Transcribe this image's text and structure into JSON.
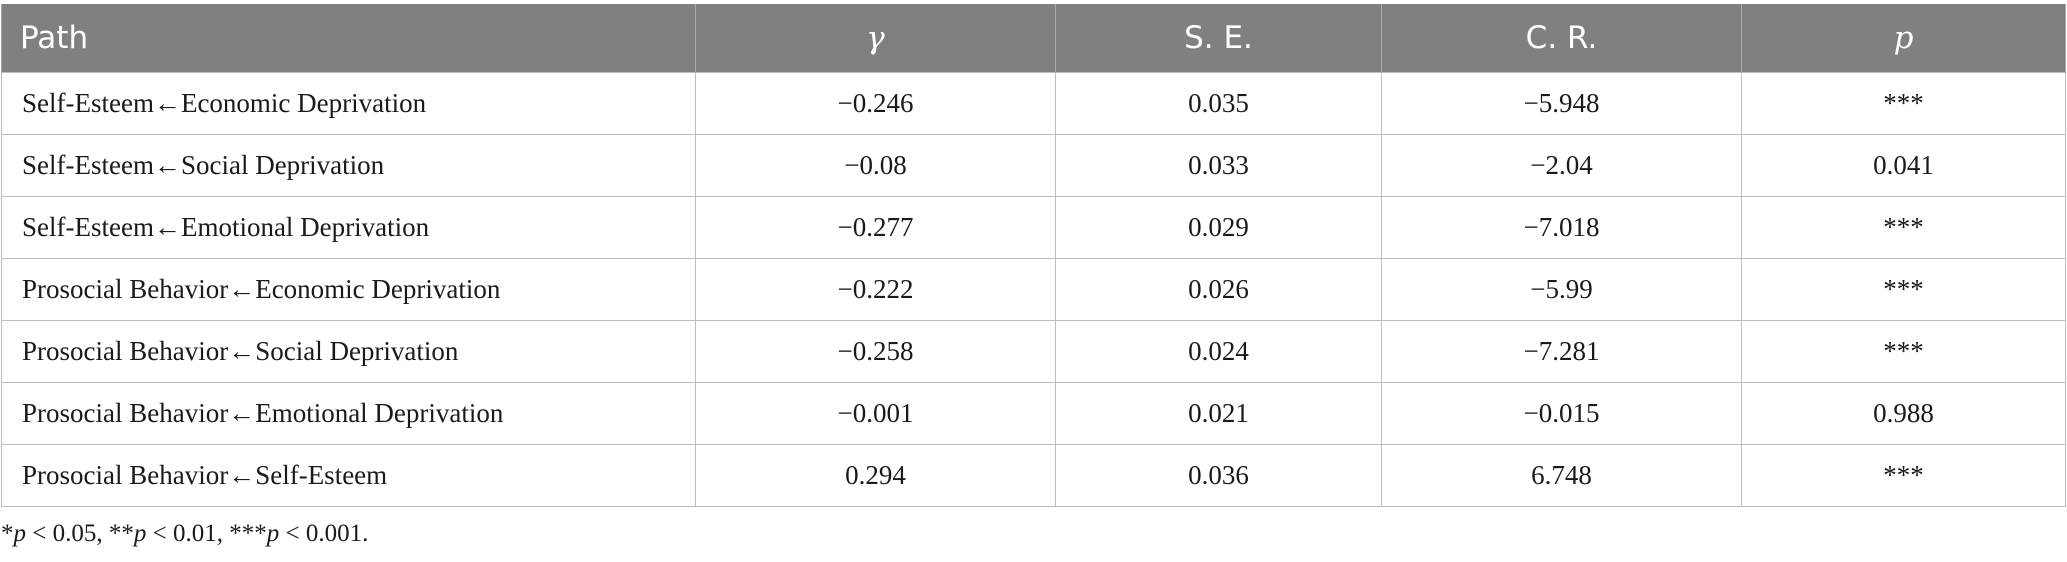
{
  "table": {
    "headers": {
      "path": "Path",
      "gamma": "γ",
      "se": "S. E.",
      "cr": "C. R.",
      "p": "p"
    },
    "rows": [
      {
        "path": "Self-Esteem←Economic Deprivation",
        "gamma": "−0.246",
        "se": "0.035",
        "cr": "−5.948",
        "p": "***"
      },
      {
        "path": "Self-Esteem←Social Deprivation",
        "gamma": "−0.08",
        "se": "0.033",
        "cr": "−2.04",
        "p": "0.041"
      },
      {
        "path": "Self-Esteem←Emotional Deprivation",
        "gamma": "−0.277",
        "se": "0.029",
        "cr": "−7.018",
        "p": "***"
      },
      {
        "path": "Prosocial Behavior←Economic Deprivation",
        "gamma": "−0.222",
        "se": "0.026",
        "cr": "−5.99",
        "p": "***"
      },
      {
        "path": "Prosocial Behavior←Social Deprivation",
        "gamma": "−0.258",
        "se": "0.024",
        "cr": "−7.281",
        "p": "***"
      },
      {
        "path": "Prosocial Behavior←Emotional Deprivation",
        "gamma": "−0.001",
        "se": "0.021",
        "cr": "−0.015",
        "p": "0.988"
      },
      {
        "path": "Prosocial Behavior←Self-Esteem",
        "gamma": "0.294",
        "se": "0.036",
        "cr": "6.748",
        "p": "***"
      }
    ]
  },
  "footnote": {
    "star1": "*",
    "p1": "p",
    "t1": " < 0.05, **",
    "p2": "p",
    "t2": " < 0.01, ***",
    "p3": "p",
    "t3": " < 0.001."
  }
}
